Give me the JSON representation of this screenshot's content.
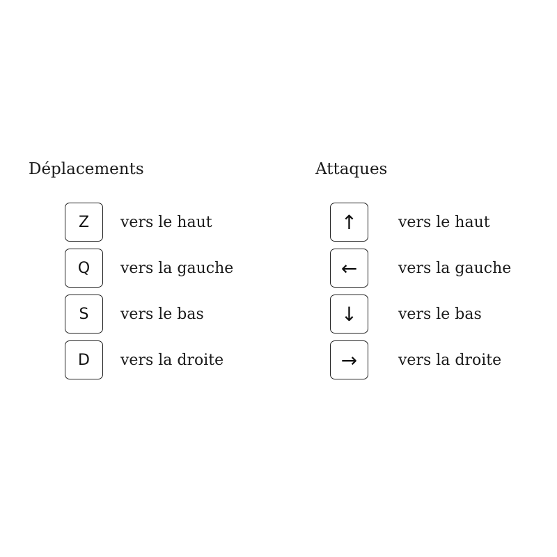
{
  "moves": {
    "title": "Déplacements",
    "keys": [
      {
        "key": "Z",
        "label": "vers le haut"
      },
      {
        "key": "Q",
        "label": "vers la gauche"
      },
      {
        "key": "S",
        "label": "vers le bas"
      },
      {
        "key": "D",
        "label": "vers la droite"
      }
    ]
  },
  "attacks": {
    "title": "Attaques",
    "keys": [
      {
        "key": "↑",
        "icon": "arrow-up-icon",
        "label": "vers le haut"
      },
      {
        "key": "←",
        "icon": "arrow-left-icon",
        "label": "vers la gauche"
      },
      {
        "key": "↓",
        "icon": "arrow-down-icon",
        "label": "vers le bas"
      },
      {
        "key": "→",
        "icon": "arrow-right-icon",
        "label": "vers la droite"
      }
    ]
  }
}
